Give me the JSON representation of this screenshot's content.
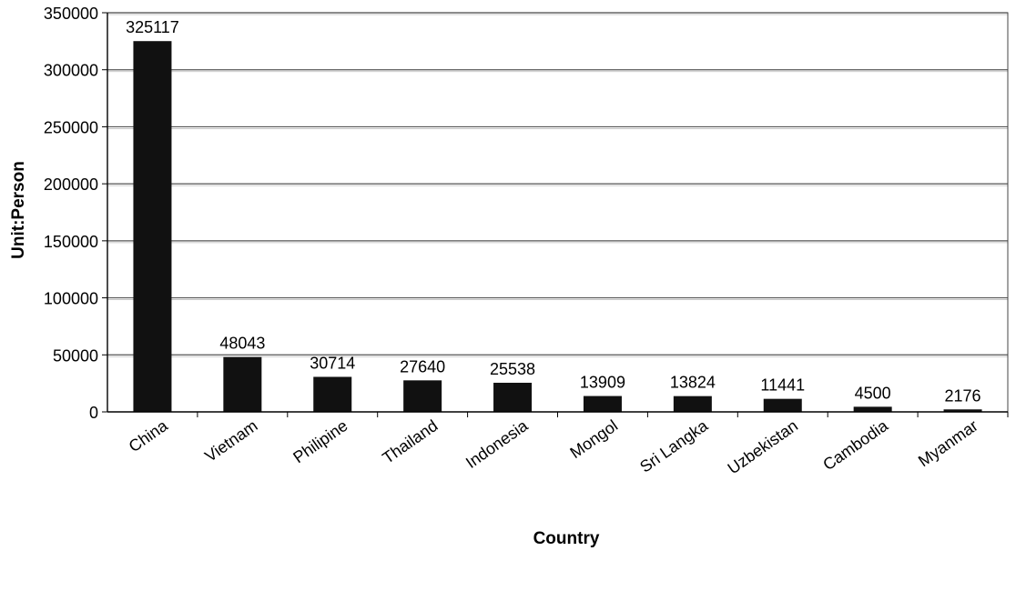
{
  "chart_data": {
    "type": "bar",
    "title": "",
    "xlabel": "Country",
    "ylabel": "Unit:Person",
    "ylim": [
      0,
      350000
    ],
    "yticks": [
      0,
      50000,
      100000,
      150000,
      200000,
      250000,
      300000,
      350000
    ],
    "grid": true,
    "legend": "none",
    "categories": [
      "China",
      "Vietnam",
      "Philipine",
      "Thailand",
      "Indonesia",
      "Mongol",
      "Sri Langka",
      "Uzbekistan",
      "Cambodia",
      "Myanmar"
    ],
    "values": [
      325117,
      48043,
      30714,
      27640,
      25538,
      13909,
      13824,
      11441,
      4500,
      2176
    ],
    "data_labels": [
      "325117",
      "48043",
      "30714",
      "27640",
      "25538",
      "13909",
      "13824",
      "11441",
      "4500",
      "2176"
    ],
    "colors": {
      "bar": "#111111",
      "grid": "#555555",
      "axis": "#000000",
      "text": "#000000"
    }
  }
}
